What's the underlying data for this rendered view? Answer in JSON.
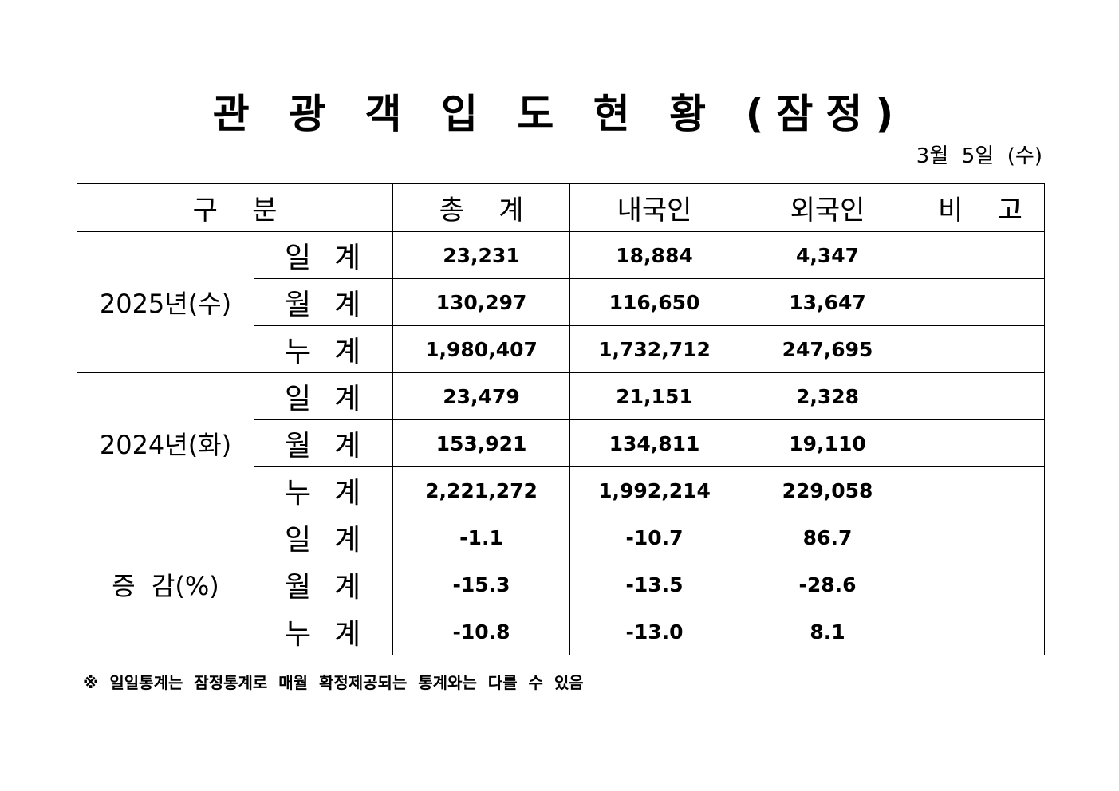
{
  "title": "관 광 객 입 도 현 황 (잠정)",
  "date": "3월  5일  (수)",
  "header": {
    "category": "구    분",
    "total": "총    계",
    "domestic": "내국인",
    "foreign": "외국인",
    "remarks": "비    고"
  },
  "sections": [
    {
      "label": "2025년(수)",
      "rows": [
        {
          "type": "일  계",
          "total": "23,231",
          "domestic": "18,884",
          "foreign": "4,347",
          "remarks": ""
        },
        {
          "type": "월  계",
          "total": "130,297",
          "domestic": "116,650",
          "foreign": "13,647",
          "remarks": ""
        },
        {
          "type": "누  계",
          "total": "1,980,407",
          "domestic": "1,732,712",
          "foreign": "247,695",
          "remarks": ""
        }
      ]
    },
    {
      "label": "2024년(화)",
      "rows": [
        {
          "type": "일  계",
          "total": "23,479",
          "domestic": "21,151",
          "foreign": "2,328",
          "remarks": ""
        },
        {
          "type": "월  계",
          "total": "153,921",
          "domestic": "134,811",
          "foreign": "19,110",
          "remarks": ""
        },
        {
          "type": "누  계",
          "total": "2,221,272",
          "domestic": "1,992,214",
          "foreign": "229,058",
          "remarks": ""
        }
      ]
    },
    {
      "label": "증  감(%)",
      "rows": [
        {
          "type": "일  계",
          "total": "-1.1",
          "domestic": "-10.7",
          "foreign": "86.7",
          "remarks": ""
        },
        {
          "type": "월  계",
          "total": "-15.3",
          "domestic": "-13.5",
          "foreign": "-28.6",
          "remarks": ""
        },
        {
          "type": "누  계",
          "total": "-10.8",
          "domestic": "-13.0",
          "foreign": "8.1",
          "remarks": ""
        }
      ]
    }
  ],
  "note": "※  일일통계는  잠정통계로  매월  확정제공되는  통계와는  다를  수  있음"
}
